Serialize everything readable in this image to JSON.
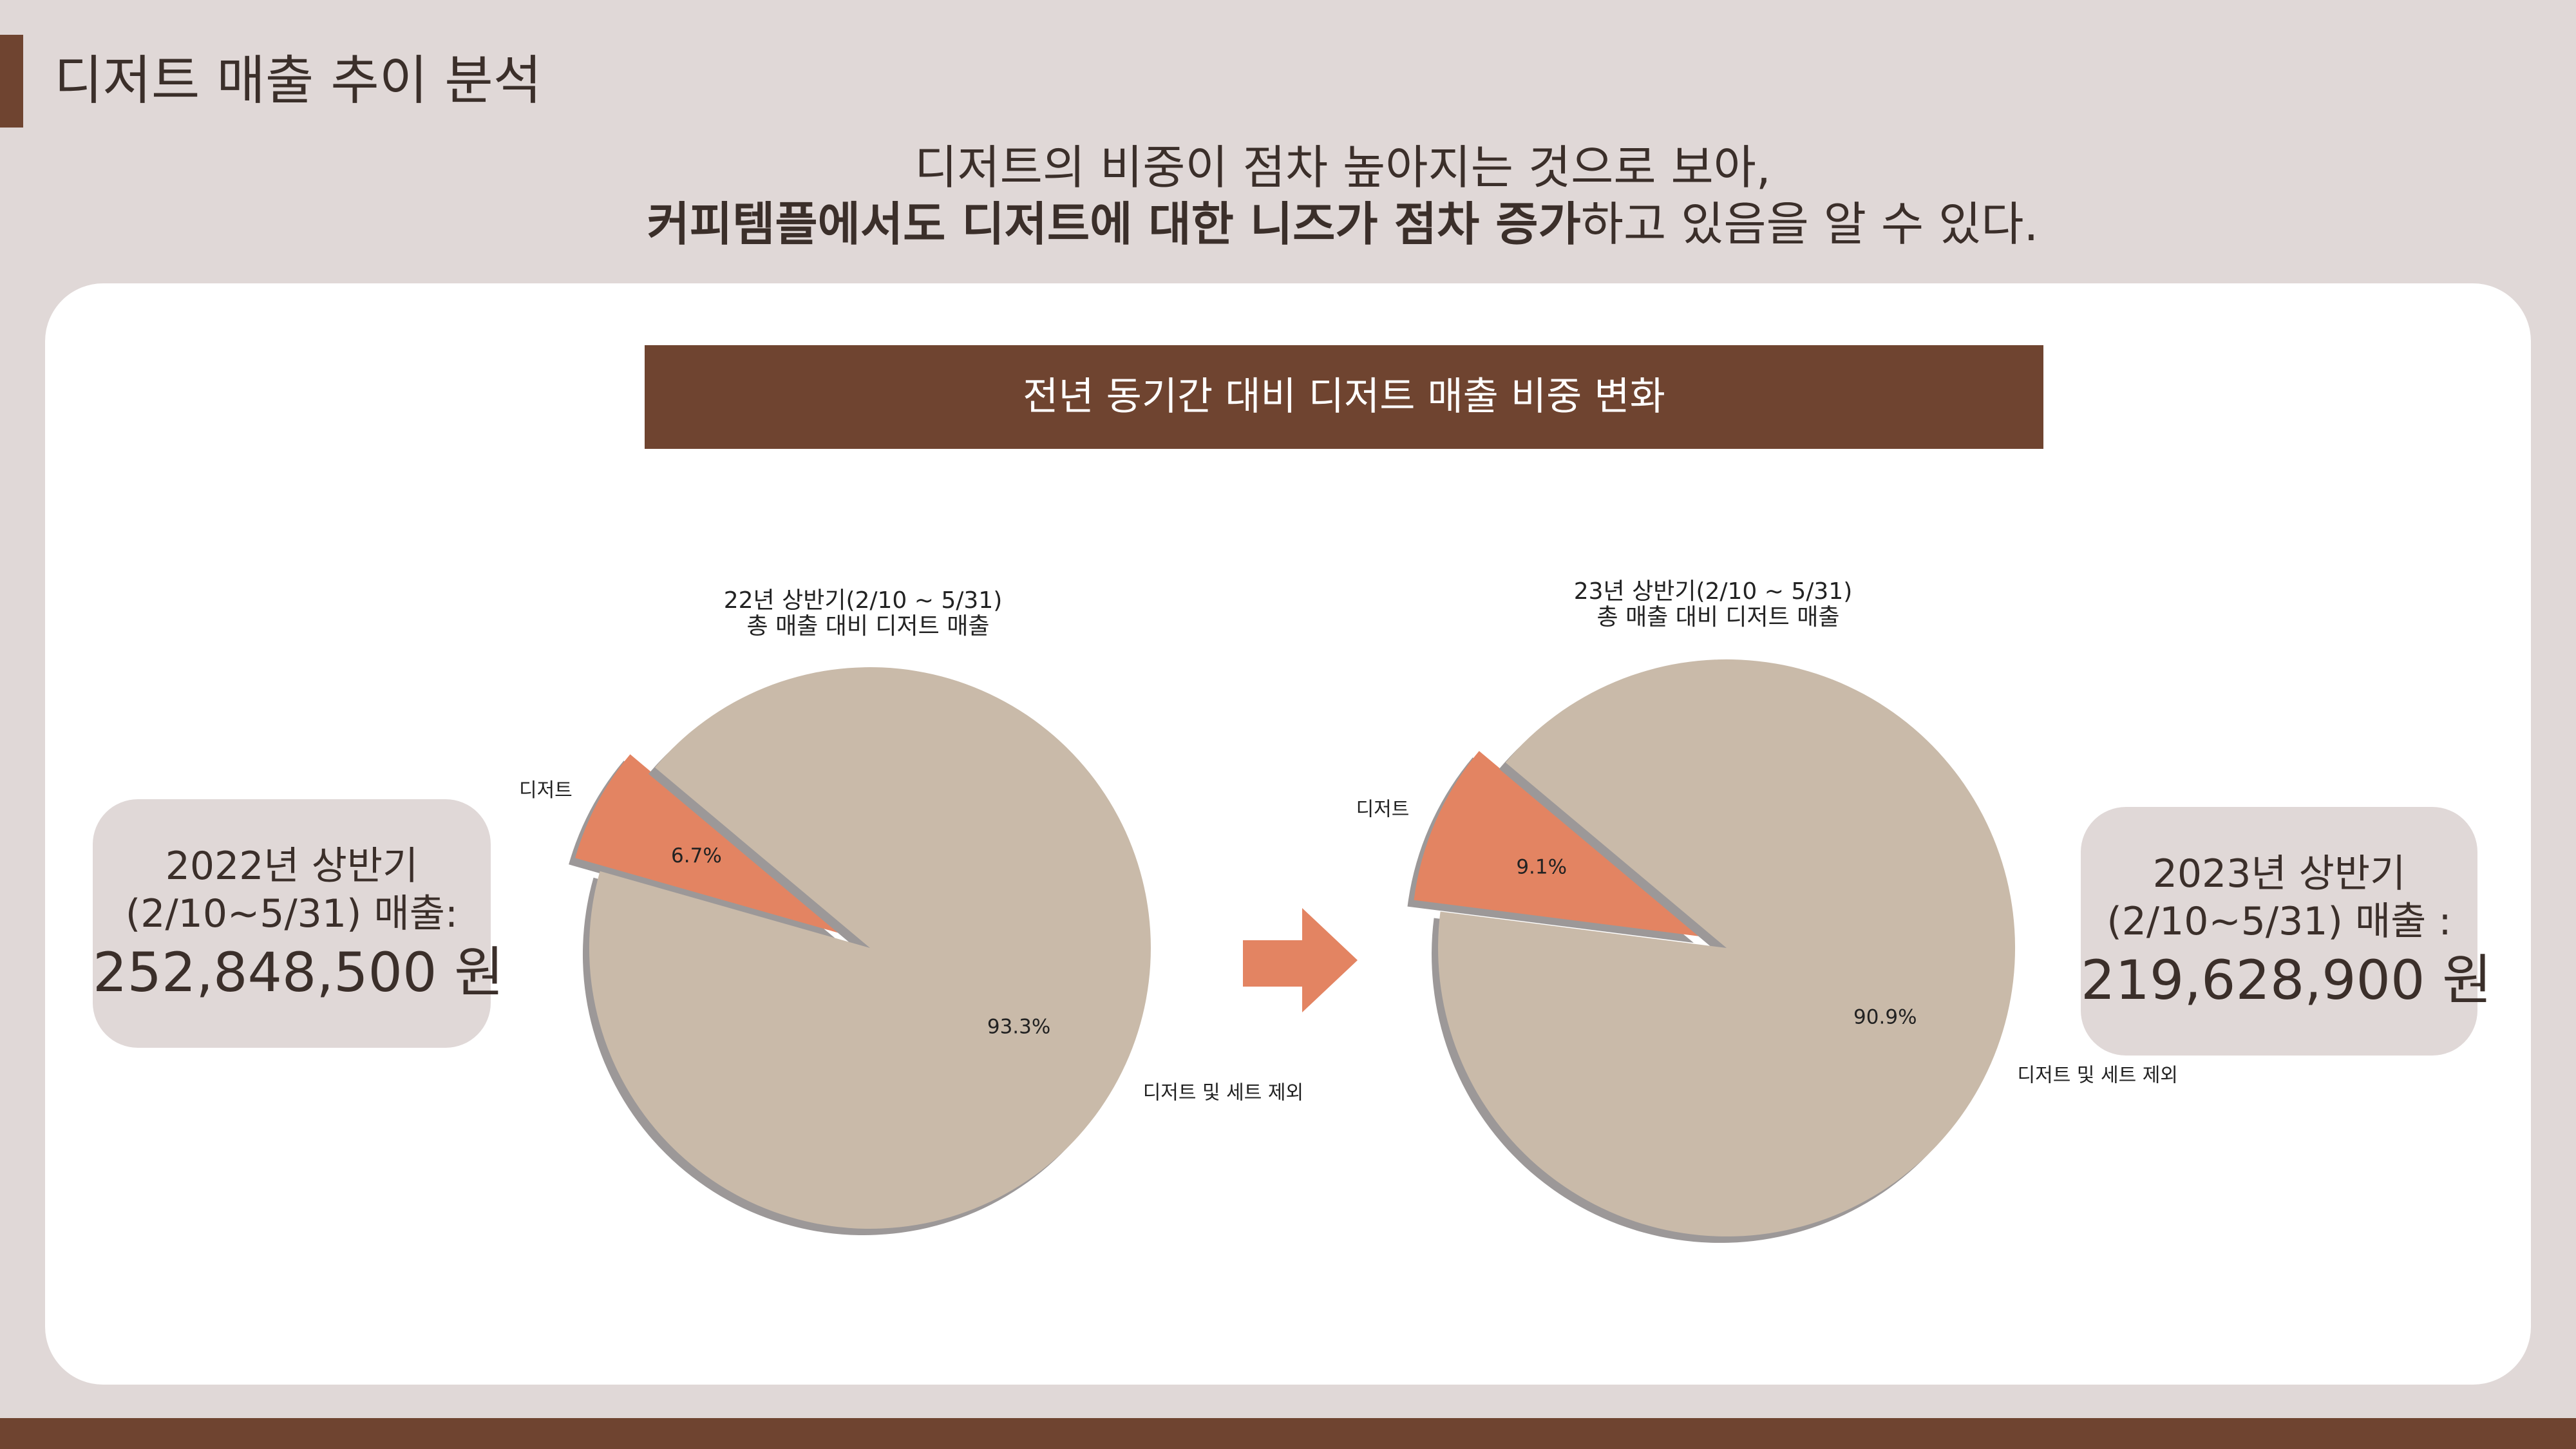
{
  "header": {
    "title": "디저트 매출 추이 분석",
    "subtitle_line1": "디저트의 비중이 점차 높아지는 것으로 보아,",
    "subtitle_line2_bold": "커피템플에서도 디저트에 대한 니즈가 점차 증가",
    "subtitle_line2_rest": "하고 있음을 알 수 있다."
  },
  "banner": {
    "title": "전년 동기간 대비 디저트 매출 비중 변화"
  },
  "left_box": {
    "line1": "2022년 상반기",
    "line2": "(2/10~5/31) 매출:",
    "amount": "252,848,500 원"
  },
  "right_box": {
    "line1": "2023년 상반기",
    "line2": "(2/10~5/31) 매출 :",
    "amount": "219,628,900 원"
  },
  "colors": {
    "brown": "#6f4430",
    "dessert": "#e38462",
    "other": "#c9baa9",
    "shadow": "#9c9898",
    "background": "#e0d8d7"
  },
  "arrow_icon": "right-arrow-icon",
  "chart_data": [
    {
      "type": "pie",
      "title_line1": "22년 상반기(2/10 ~ 5/31)",
      "title_line2": "총 매출 대비 디저트 매출",
      "labels": [
        "디저트",
        "디저트 및 세트 제외"
      ],
      "values": [
        6.7,
        93.3
      ],
      "value_labels": [
        "6.7%",
        "93.3%"
      ],
      "exploded": [
        "디저트"
      ],
      "shadow": true
    },
    {
      "type": "pie",
      "title_line1": "23년 상반기(2/10 ~ 5/31)",
      "title_line2": "총 매출 대비 디저트 매출",
      "labels": [
        "디저트",
        "디저트 및 세트 제외"
      ],
      "values": [
        9.1,
        90.9
      ],
      "value_labels": [
        "9.1%",
        "90.9%"
      ],
      "exploded": [
        "디저트"
      ],
      "shadow": true
    }
  ]
}
